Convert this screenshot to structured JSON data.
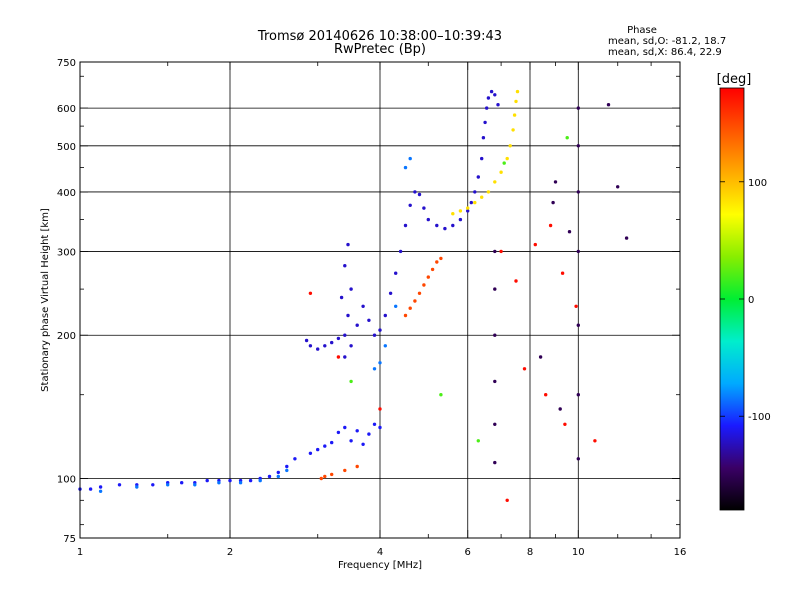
{
  "chart_data": {
    "type": "scatter",
    "title": "Tromsø 20140626 10:38:00–10:39:43",
    "subtitle": "RwPretec (Bp)",
    "xlabel": "Frequency [MHz]",
    "ylabel": "Stationary phase Virtual Height [km]",
    "x_scale": "log",
    "y_scale": "log",
    "xlim": [
      1,
      16
    ],
    "ylim": [
      75,
      750
    ],
    "x_ticks": [
      1,
      2,
      4,
      6,
      8,
      10,
      16
    ],
    "x_minor_ticks": [
      1.5,
      3,
      5,
      7,
      9,
      12,
      14
    ],
    "y_ticks": [
      75,
      100,
      200,
      300,
      400,
      500,
      600,
      750
    ],
    "y_minor_ticks": [
      80,
      90,
      150,
      250,
      350,
      450,
      550,
      700
    ],
    "x_grid": [
      2,
      4,
      6,
      8,
      10
    ],
    "y_grid": [
      100,
      200,
      300,
      400,
      500,
      600
    ],
    "grid": true,
    "legend": {
      "title": "Phase",
      "lines": [
        "mean, sd,O: -81.2, 18.7",
        "mean, sd,X:  86.4, 22.9"
      ],
      "placement": "top-right"
    },
    "colorbar": {
      "label": "[deg]",
      "range": [
        -180,
        180
      ],
      "ticks": [
        100,
        0,
        -100
      ],
      "colormap": [
        "#000000",
        "#3a0066",
        "#1a1aff",
        "#00aaff",
        "#00eecc",
        "#00ee33",
        "#88ee00",
        "#ffff00",
        "#ffaa00",
        "#ff5500",
        "#ff0000"
      ]
    },
    "series": [
      {
        "phase_deg": -110,
        "points": [
          [
            1.0,
            95
          ],
          [
            1.05,
            95
          ],
          [
            1.1,
            96
          ],
          [
            1.2,
            97
          ],
          [
            1.3,
            97
          ],
          [
            1.4,
            97
          ],
          [
            1.5,
            98
          ],
          [
            1.6,
            98
          ],
          [
            1.7,
            98
          ],
          [
            1.8,
            99
          ],
          [
            1.9,
            99
          ],
          [
            2.0,
            99
          ],
          [
            2.1,
            99
          ],
          [
            2.2,
            99
          ],
          [
            2.3,
            100
          ],
          [
            2.4,
            101
          ],
          [
            2.5,
            103
          ],
          [
            2.6,
            106
          ],
          [
            2.7,
            110
          ],
          [
            2.9,
            113
          ],
          [
            3.0,
            115
          ],
          [
            3.1,
            117
          ],
          [
            3.2,
            119
          ],
          [
            3.3,
            125
          ],
          [
            3.4,
            128
          ],
          [
            3.5,
            120
          ],
          [
            3.6,
            126
          ],
          [
            3.7,
            118
          ],
          [
            3.8,
            124
          ],
          [
            3.9,
            130
          ],
          [
            4.0,
            128
          ]
        ]
      },
      {
        "phase_deg": -120,
        "points": [
          [
            2.85,
            195
          ],
          [
            2.9,
            190
          ],
          [
            3.0,
            187
          ],
          [
            3.1,
            190
          ],
          [
            3.2,
            193
          ],
          [
            3.3,
            197
          ],
          [
            3.35,
            240
          ],
          [
            3.4,
            280
          ],
          [
            3.45,
            310
          ],
          [
            3.5,
            250
          ],
          [
            3.45,
            220
          ],
          [
            3.4,
            200
          ],
          [
            3.4,
            180
          ],
          [
            3.5,
            190
          ],
          [
            3.6,
            210
          ],
          [
            3.7,
            230
          ],
          [
            3.8,
            215
          ],
          [
            3.9,
            200
          ],
          [
            4.0,
            205
          ],
          [
            4.1,
            220
          ],
          [
            4.2,
            245
          ],
          [
            4.3,
            270
          ],
          [
            4.4,
            300
          ],
          [
            4.5,
            340
          ],
          [
            4.6,
            375
          ],
          [
            4.7,
            400
          ],
          [
            4.8,
            395
          ],
          [
            4.9,
            370
          ],
          [
            5.0,
            350
          ],
          [
            5.2,
            340
          ],
          [
            5.4,
            335
          ],
          [
            5.6,
            340
          ],
          [
            5.8,
            350
          ],
          [
            6.0,
            365
          ],
          [
            6.1,
            380
          ],
          [
            6.2,
            400
          ],
          [
            6.3,
            430
          ],
          [
            6.4,
            470
          ],
          [
            6.45,
            520
          ],
          [
            6.5,
            560
          ],
          [
            6.55,
            600
          ],
          [
            6.6,
            630
          ],
          [
            6.7,
            650
          ],
          [
            6.8,
            640
          ],
          [
            6.9,
            610
          ]
        ]
      },
      {
        "phase_deg": -85,
        "points": [
          [
            1.1,
            94
          ],
          [
            1.3,
            96
          ],
          [
            1.5,
            97
          ],
          [
            1.7,
            97
          ],
          [
            1.9,
            98
          ],
          [
            2.1,
            98
          ],
          [
            2.3,
            99
          ],
          [
            2.5,
            101
          ],
          [
            2.6,
            104
          ],
          [
            3.9,
            170
          ],
          [
            4.0,
            175
          ],
          [
            4.1,
            190
          ],
          [
            4.3,
            230
          ],
          [
            4.5,
            450
          ],
          [
            4.6,
            470
          ]
        ]
      },
      {
        "phase_deg": 85,
        "points": [
          [
            5.6,
            360
          ],
          [
            5.8,
            365
          ],
          [
            6.0,
            370
          ],
          [
            6.2,
            380
          ],
          [
            6.4,
            390
          ],
          [
            6.6,
            400
          ],
          [
            6.8,
            420
          ],
          [
            7.0,
            440
          ],
          [
            7.2,
            470
          ],
          [
            7.3,
            500
          ],
          [
            7.4,
            540
          ],
          [
            7.45,
            580
          ],
          [
            7.5,
            620
          ],
          [
            7.55,
            650
          ]
        ]
      },
      {
        "phase_deg": 150,
        "points": [
          [
            3.05,
            100
          ],
          [
            3.1,
            101
          ],
          [
            3.2,
            102
          ],
          [
            3.4,
            104
          ],
          [
            3.6,
            106
          ],
          [
            4.5,
            220
          ],
          [
            4.6,
            228
          ],
          [
            4.7,
            236
          ],
          [
            4.8,
            245
          ],
          [
            4.9,
            255
          ],
          [
            5.0,
            265
          ],
          [
            5.1,
            275
          ],
          [
            5.2,
            285
          ],
          [
            5.3,
            290
          ]
        ]
      },
      {
        "phase_deg": 175,
        "points": [
          [
            2.9,
            245
          ],
          [
            3.3,
            180
          ],
          [
            4.0,
            140
          ],
          [
            7.0,
            300
          ],
          [
            7.5,
            260
          ],
          [
            8.2,
            310
          ],
          [
            8.8,
            340
          ],
          [
            9.3,
            270
          ],
          [
            9.9,
            230
          ],
          [
            7.8,
            170
          ],
          [
            8.6,
            150
          ],
          [
            9.4,
            130
          ],
          [
            10.8,
            120
          ],
          [
            7.2,
            90
          ]
        ]
      },
      {
        "phase_deg": -150,
        "points": [
          [
            6.8,
            300
          ],
          [
            6.8,
            250
          ],
          [
            6.8,
            200
          ],
          [
            6.8,
            160
          ],
          [
            6.8,
            130
          ],
          [
            6.8,
            108
          ],
          [
            10.0,
            600
          ],
          [
            10.0,
            500
          ],
          [
            10.0,
            400
          ],
          [
            10.0,
            300
          ],
          [
            10.0,
            210
          ],
          [
            10.0,
            150
          ],
          [
            10.0,
            110
          ],
          [
            9.0,
            420
          ],
          [
            9.6,
            330
          ],
          [
            11.5,
            610
          ],
          [
            12.0,
            410
          ],
          [
            12.5,
            320
          ],
          [
            8.4,
            180
          ],
          [
            9.2,
            140
          ],
          [
            8.9,
            380
          ]
        ]
      },
      {
        "phase_deg": 20,
        "points": [
          [
            3.5,
            160
          ],
          [
            5.3,
            150
          ],
          [
            7.1,
            460
          ],
          [
            9.5,
            520
          ],
          [
            6.3,
            120
          ]
        ]
      }
    ]
  }
}
